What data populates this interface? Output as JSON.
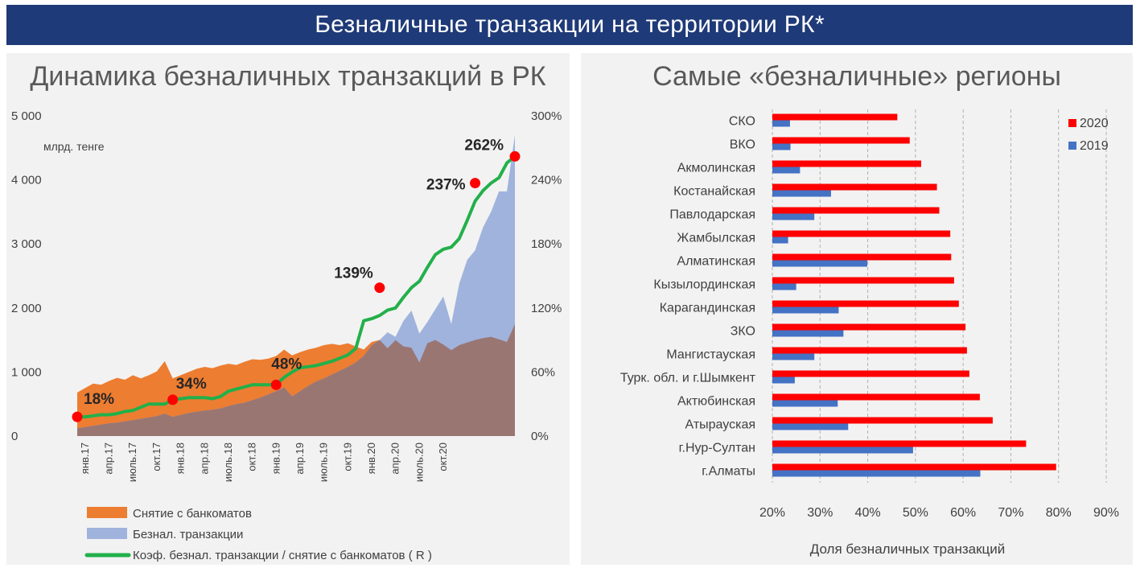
{
  "banner": {
    "title": "Безналичные транзакции на территории РК*"
  },
  "left_panel": {
    "title": "Динамика безналичных транзакций в РК"
  },
  "right_panel": {
    "title": "Самые «безналичные» регионы"
  },
  "colors": {
    "banner": "#1f3a78",
    "atm": "#ed7d31",
    "noncash": "#9fb3dd",
    "overlap": "#9a7673",
    "ratio_line": "#22b04a",
    "marker": "#ff0000",
    "bar_2020": "#ff0000",
    "bar_2019": "#4472c4"
  },
  "chart_data": [
    {
      "type": "area",
      "title": "Динамика безналичных транзакций в РК",
      "ylabel": "млрд. тенге",
      "ylim": [
        0,
        5000
      ],
      "y2lim": [
        0,
        3.0
      ],
      "y_ticks": [
        "0",
        "1 000",
        "2 000",
        "3 000",
        "4 000",
        "5 000"
      ],
      "y2_ticks": [
        "0%",
        "60%",
        "120%",
        "180%",
        "240%",
        "300%"
      ],
      "x_tick_labels": [
        "янв.17",
        "апр.17",
        "июль.17",
        "окт.17",
        "янв.18",
        "апр.18",
        "июль.18",
        "окт.18",
        "янв.19",
        "апр.19",
        "июль.19",
        "окт.19",
        "янв.20",
        "апр.20",
        "июль.20",
        "окт.20"
      ],
      "series": [
        {
          "name": "Снятие с банкоматов",
          "axis": "left",
          "values": [
            680,
            750,
            820,
            800,
            860,
            910,
            880,
            950,
            900,
            950,
            1010,
            1170,
            900,
            950,
            1000,
            1050,
            1080,
            1060,
            1100,
            1130,
            1110,
            1160,
            1200,
            1190,
            1210,
            1250,
            1350,
            1260,
            1310,
            1350,
            1380,
            1420,
            1440,
            1420,
            1450,
            1400,
            1350,
            1470,
            1500,
            1370,
            1500,
            1400,
            1380,
            1150,
            1450,
            1500,
            1430,
            1340,
            1420,
            1460,
            1500,
            1530,
            1550,
            1510,
            1470,
            1750
          ]
        },
        {
          "name": "Безнал. транзакции",
          "axis": "left",
          "values": [
            120,
            140,
            160,
            180,
            200,
            210,
            230,
            250,
            270,
            290,
            310,
            350,
            300,
            330,
            360,
            380,
            400,
            410,
            430,
            470,
            500,
            520,
            560,
            600,
            650,
            700,
            760,
            620,
            700,
            780,
            850,
            900,
            960,
            1020,
            1080,
            1150,
            1250,
            1420,
            1500,
            1620,
            1550,
            1800,
            1960,
            1600,
            1780,
            1980,
            2180,
            1750,
            2380,
            2750,
            2900,
            3260,
            3500,
            3820,
            3820,
            4700
          ]
        },
        {
          "name": "Коэф. безнал. транзакции / снятие с банкоматов ( R )",
          "axis": "right",
          "values": [
            0.18,
            0.18,
            0.19,
            0.2,
            0.2,
            0.21,
            0.23,
            0.24,
            0.27,
            0.3,
            0.3,
            0.3,
            0.34,
            0.35,
            0.36,
            0.36,
            0.36,
            0.35,
            0.37,
            0.42,
            0.44,
            0.46,
            0.48,
            0.48,
            0.48,
            0.48,
            0.55,
            0.6,
            0.64,
            0.65,
            0.66,
            0.68,
            0.7,
            0.73,
            0.76,
            0.82,
            1.08,
            1.1,
            1.13,
            1.18,
            1.2,
            1.3,
            1.39,
            1.45,
            1.58,
            1.7,
            1.75,
            1.77,
            1.85,
            2.02,
            2.2,
            2.3,
            2.37,
            2.42,
            2.56,
            2.62
          ]
        }
      ],
      "annotations": [
        {
          "label": "18%",
          "index": 0,
          "value": 0.18
        },
        {
          "label": "34%",
          "index": 12,
          "value": 0.34
        },
        {
          "label": "48%",
          "index": 25,
          "value": 0.48
        },
        {
          "label": "139%",
          "index": 38,
          "value": 1.39
        },
        {
          "label": "237%",
          "index": 50,
          "value": 2.37
        },
        {
          "label": "262%",
          "index": 55,
          "value": 2.62
        }
      ],
      "legend": [
        {
          "label": "Снятие с банкоматов",
          "kind": "area-atm"
        },
        {
          "label": "Безнал. транзакции",
          "kind": "area-noncash"
        },
        {
          "label": "Коэф. безнал. транзакции / снятие с банкоматов ( R )",
          "kind": "line"
        }
      ],
      "legend_position": "bottom"
    },
    {
      "type": "bar",
      "orientation": "horizontal",
      "title": "Самые «безналичные» регионы",
      "xlabel": "Доля безналичных транзакций",
      "xlim": [
        0.2,
        0.9
      ],
      "x_ticks": [
        "20%",
        "30%",
        "40%",
        "50%",
        "60%",
        "70%",
        "80%",
        "90%"
      ],
      "categories": [
        "СКО",
        "ВКО",
        "Акмолинская",
        "Костанайская",
        "Павлодарская",
        "Жамбылская",
        "Алматинская",
        "Кызылординская",
        "Карагандинская",
        "ЗКО",
        "Мангистауская",
        "Турк. обл. и г.Шымкент",
        "Актюбинская",
        "Атырауская",
        "г.Нур-Султан",
        "г.Алматы"
      ],
      "series": [
        {
          "name": "2020",
          "values": [
            0.462,
            0.488,
            0.512,
            0.545,
            0.55,
            0.573,
            0.575,
            0.581,
            0.591,
            0.605,
            0.608,
            0.613,
            0.635,
            0.662,
            0.732,
            0.795
          ]
        },
        {
          "name": "2019",
          "values": [
            0.237,
            0.238,
            0.258,
            0.323,
            0.288,
            0.233,
            0.399,
            0.25,
            0.339,
            0.349,
            0.288,
            0.247,
            0.337,
            0.359,
            0.495,
            0.636
          ]
        }
      ],
      "legend_position": "top-right"
    }
  ]
}
